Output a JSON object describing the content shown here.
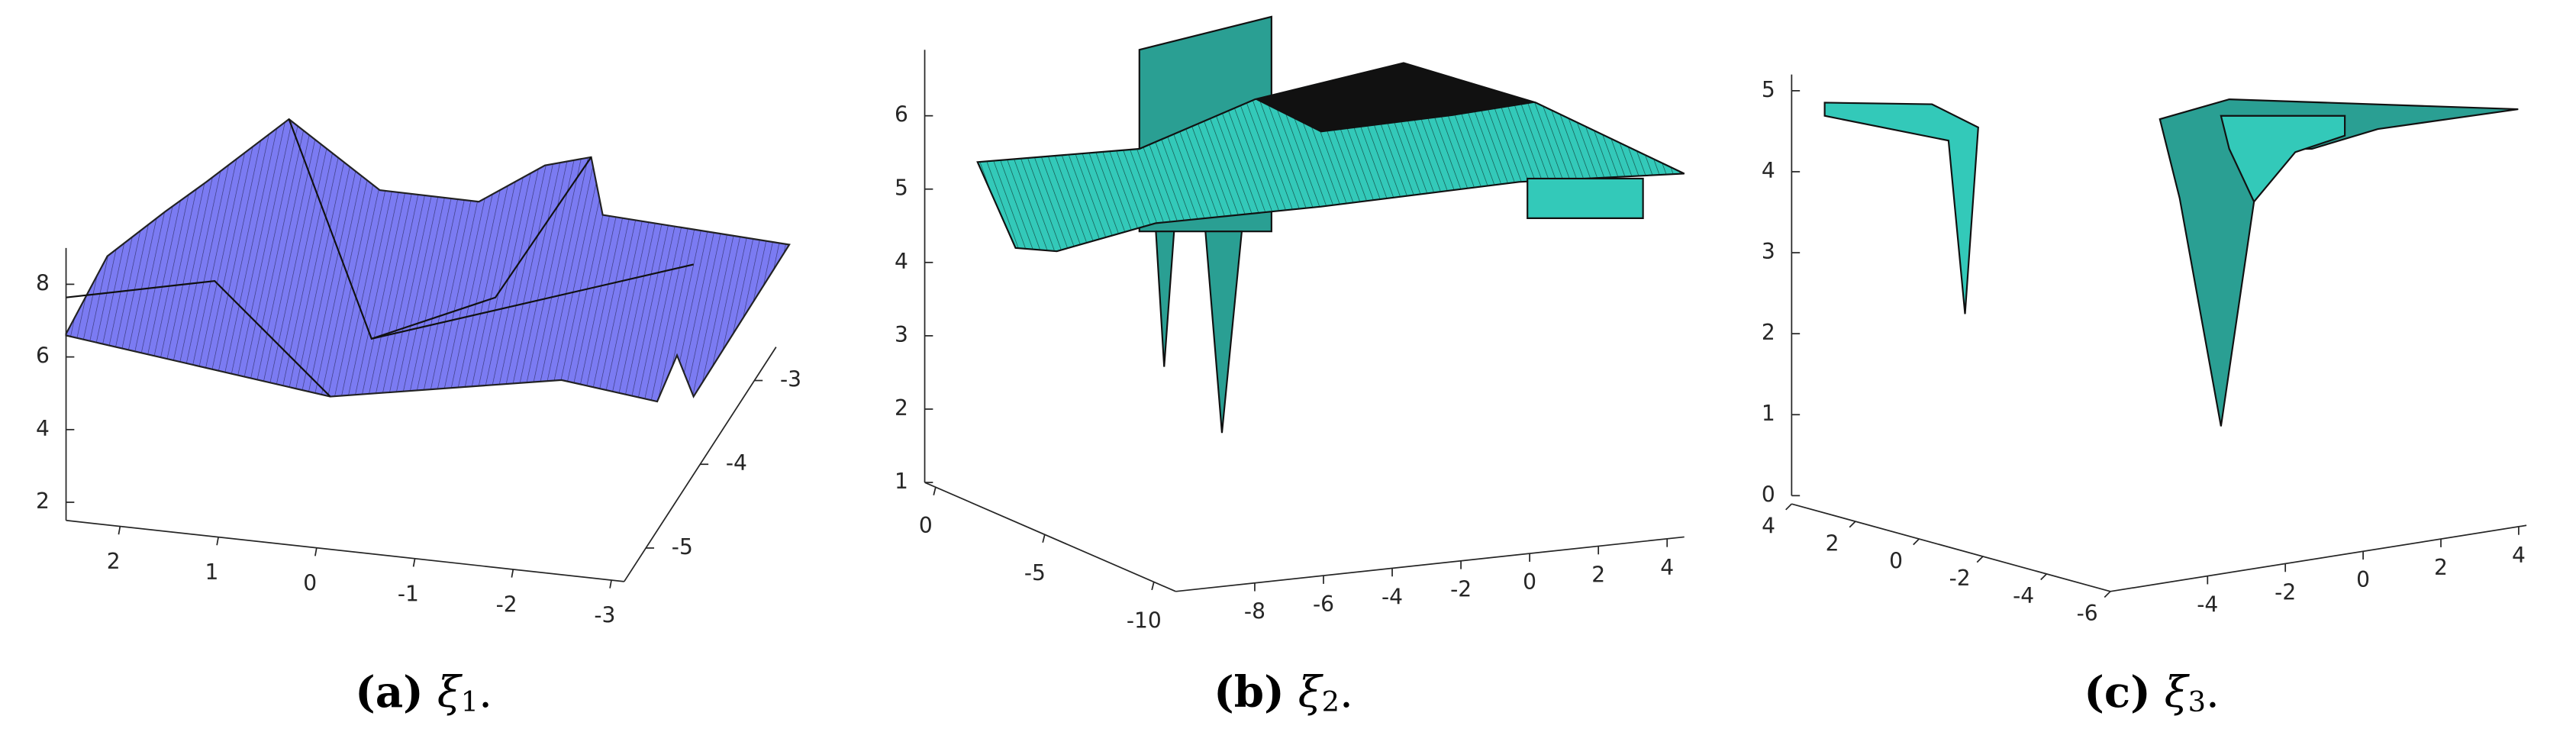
{
  "chart_data": [
    {
      "type": "surface3d",
      "label": "(a)",
      "symbol": "ξ",
      "subscript": "1",
      "punct": ".",
      "zlim": [
        1.5,
        9
      ],
      "zticks": [
        2,
        4,
        6,
        8
      ],
      "xlim": [
        2.55,
        -3.13
      ],
      "xticks": [
        2,
        1,
        0,
        -1,
        -2,
        -3
      ],
      "ylim": [
        -5.4,
        -2.6
      ],
      "yticks": [
        -5,
        -4,
        -3
      ],
      "color": "#7b7bf2"
    },
    {
      "type": "surface3d",
      "label": "(b)",
      "symbol": "ξ",
      "subscript": "2",
      "punct": ".",
      "zlim": [
        1,
        6.9
      ],
      "zticks": [
        1,
        2,
        3,
        4,
        5,
        6
      ],
      "xlim": [
        -10.3,
        4.5
      ],
      "xticks": [
        -8,
        -6,
        -4,
        -2,
        0,
        2,
        4
      ],
      "ylim": [
        0.5,
        -11
      ],
      "yticks": [
        0,
        -5,
        -10
      ],
      "color": "#33c9b9"
    },
    {
      "type": "surface3d",
      "label": "(c)",
      "symbol": "ξ",
      "subscript": "3",
      "punct": ".",
      "zlim": [
        0,
        5.2
      ],
      "zticks": [
        0,
        1,
        2,
        3,
        4,
        5
      ],
      "xlim": [
        -6.5,
        4.2
      ],
      "xticks": [
        -4,
        -2,
        0,
        2,
        4
      ],
      "ylim": [
        4,
        -6
      ],
      "yticks": [
        4,
        2,
        0,
        -2,
        -4,
        -6
      ],
      "color": "#33c9b9"
    }
  ]
}
